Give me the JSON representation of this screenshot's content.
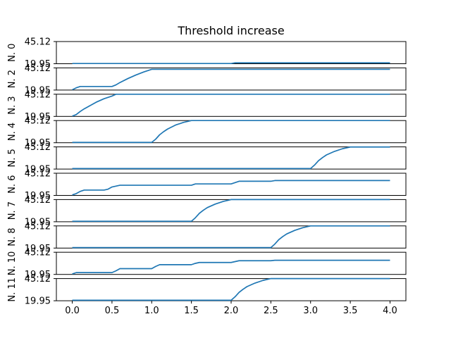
{
  "chart_data": {
    "type": "line",
    "title": "Threshold increase",
    "ylim": [
      19.95,
      45.12
    ],
    "y_tick_labels": [
      "19.95",
      "45.12"
    ],
    "xlim": [
      -0.2,
      4.2
    ],
    "x_ticks": [
      0.0,
      0.5,
      1.0,
      1.5,
      2.0,
      2.5,
      3.0,
      3.5,
      4.0
    ],
    "x_tick_labels": [
      "0.0",
      "0.5",
      "1.0",
      "1.5",
      "2.0",
      "2.5",
      "3.0",
      "3.5",
      "4.0"
    ],
    "line_color": "#1f77b4",
    "grid": false,
    "legend": "none",
    "series": [
      {
        "name": "N. 0",
        "x": [
          0.0,
          2.0,
          2.05,
          4.0
        ],
        "y": [
          20.2,
          20.2,
          21.0,
          21.0
        ]
      },
      {
        "name": "N. 2",
        "x": [
          0.0,
          0.05,
          0.1,
          0.5,
          0.55,
          0.6,
          0.7,
          0.8,
          0.9,
          1.0,
          4.0
        ],
        "y": [
          20.3,
          22.5,
          24.0,
          24.0,
          25.8,
          28.5,
          33.0,
          37.0,
          40.5,
          43.5,
          43.5
        ]
      },
      {
        "name": "N. 3",
        "x": [
          0.0,
          0.05,
          0.1,
          0.15,
          0.2,
          0.25,
          0.3,
          0.35,
          0.4,
          0.45,
          0.5,
          0.55,
          4.0
        ],
        "y": [
          20.3,
          22.0,
          25.5,
          28.5,
          31.0,
          33.5,
          36.0,
          38.0,
          40.0,
          41.5,
          43.0,
          45.12,
          45.12
        ]
      },
      {
        "name": "N. 4",
        "x": [
          0.0,
          1.0,
          1.05,
          1.1,
          1.15,
          1.2,
          1.3,
          1.4,
          1.5,
          4.0
        ],
        "y": [
          20.3,
          20.3,
          24.0,
          29.0,
          32.5,
          35.5,
          40.0,
          43.0,
          45.12,
          45.12
        ]
      },
      {
        "name": "N. 5",
        "x": [
          0.0,
          3.0,
          3.05,
          3.1,
          3.15,
          3.2,
          3.3,
          3.4,
          3.5,
          4.0
        ],
        "y": [
          20.5,
          20.5,
          24.5,
          29.5,
          33.0,
          36.0,
          40.0,
          43.0,
          45.0,
          45.0
        ]
      },
      {
        "name": "N. 6",
        "x": [
          0.0,
          0.05,
          0.1,
          0.15,
          0.4,
          0.45,
          0.5,
          0.6,
          1.5,
          1.55,
          2.0,
          2.05,
          2.1,
          2.5,
          2.55,
          4.0
        ],
        "y": [
          20.5,
          22.0,
          24.5,
          26.0,
          26.0,
          27.0,
          29.5,
          31.5,
          31.5,
          33.0,
          33.0,
          34.5,
          36.0,
          36.0,
          36.8,
          36.8
        ]
      },
      {
        "name": "N. 7",
        "x": [
          0.0,
          1.5,
          1.55,
          1.6,
          1.65,
          1.7,
          1.8,
          1.9,
          2.0,
          4.0
        ],
        "y": [
          20.5,
          20.5,
          24.5,
          29.5,
          33.0,
          36.0,
          40.0,
          43.0,
          45.12,
          45.12
        ]
      },
      {
        "name": "N. 8",
        "x": [
          0.0,
          2.5,
          2.55,
          2.6,
          2.65,
          2.7,
          2.8,
          2.9,
          3.0,
          4.0
        ],
        "y": [
          20.5,
          20.5,
          24.5,
          29.5,
          33.0,
          36.0,
          40.0,
          43.0,
          45.12,
          45.12
        ]
      },
      {
        "name": "N. 10",
        "x": [
          0.0,
          0.05,
          0.5,
          0.55,
          0.6,
          1.0,
          1.05,
          1.1,
          1.5,
          1.55,
          1.6,
          2.0,
          2.05,
          2.1,
          2.5,
          2.55,
          4.0
        ],
        "y": [
          20.5,
          22.0,
          22.0,
          24.0,
          26.5,
          26.5,
          29.0,
          31.0,
          31.0,
          32.5,
          33.5,
          33.5,
          34.5,
          35.5,
          35.5,
          36.0,
          36.0
        ]
      },
      {
        "name": "N. 11",
        "x": [
          0.0,
          2.0,
          2.05,
          2.1,
          2.15,
          2.2,
          2.3,
          2.4,
          2.5,
          4.0
        ],
        "y": [
          20.5,
          20.5,
          24.5,
          29.5,
          33.0,
          36.0,
          40.0,
          43.0,
          45.12,
          45.12
        ]
      }
    ]
  }
}
